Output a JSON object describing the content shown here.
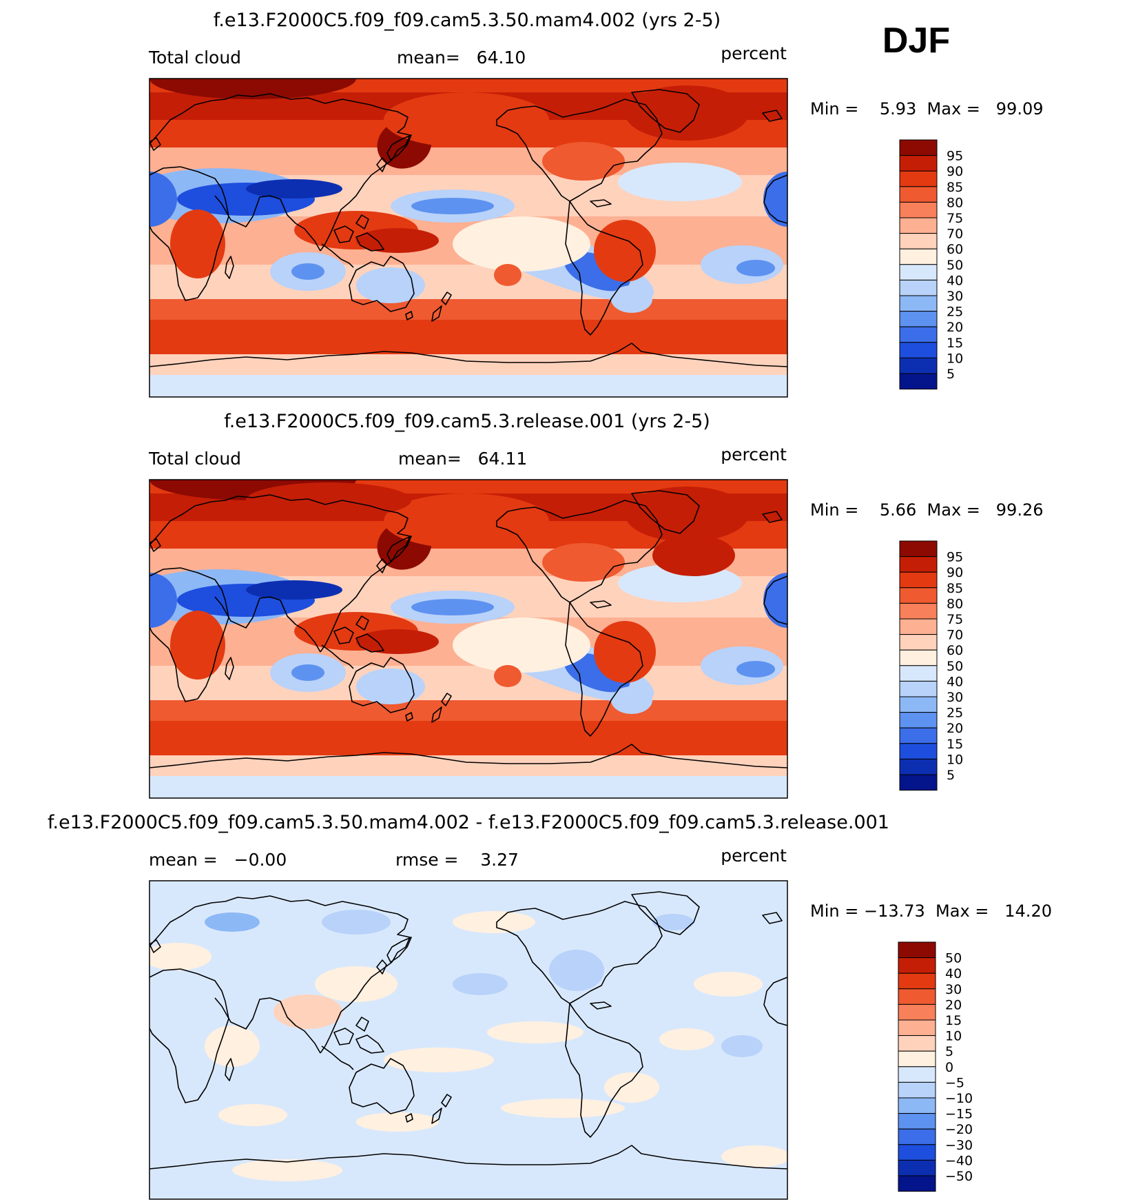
{
  "season": "DJF",
  "colors": {
    "warm": [
      "#fff0e0",
      "#ffd2bc",
      "#fdb092",
      "#f8805a",
      "#ef5a30",
      "#e33a12",
      "#c51e06",
      "#8c0a02"
    ],
    "cool": [
      "#d8e8fc",
      "#b8d2fa",
      "#8db8f6",
      "#5e92f0",
      "#3b6ee8",
      "#1d4ede",
      "#0c2fb2",
      "#04148a"
    ],
    "outline": "#000000"
  },
  "panels": [
    {
      "title": "f.e13.F2000C5.f09_f09.cam5.3.50.mam4.002 (yrs 2-5)",
      "left_label": "Total cloud",
      "center_label": "mean=   64.10",
      "right_label": "percent",
      "minmax_label": "Min =    5.93  Max =   99.09",
      "field_type": "absolute",
      "colorbar_labels": [
        "95",
        "90",
        "85",
        "80",
        "75",
        "70",
        "60",
        "50",
        "40",
        "30",
        "25",
        "20",
        "15",
        "10",
        "5"
      ]
    },
    {
      "title": "f.e13.F2000C5.f09_f09.cam5.3.release.001 (yrs 2-5)",
      "left_label": "Total cloud",
      "center_label": "mean=   64.11",
      "right_label": "percent",
      "minmax_label": "Min =    5.66  Max =   99.26",
      "field_type": "absolute",
      "colorbar_labels": [
        "95",
        "90",
        "85",
        "80",
        "75",
        "70",
        "60",
        "50",
        "40",
        "30",
        "25",
        "20",
        "15",
        "10",
        "5"
      ]
    },
    {
      "title": "f.e13.F2000C5.f09_f09.cam5.3.50.mam4.002 - f.e13.F2000C5.f09_f09.cam5.3.release.001",
      "left_label": "mean =   −0.00",
      "center_label": "rmse =    3.27",
      "right_label": "percent",
      "minmax_label": "Min = −13.73  Max =   14.20",
      "field_type": "difference",
      "colorbar_labels": [
        "50",
        "40",
        "30",
        "20",
        "15",
        "10",
        "5",
        "0",
        "−5",
        "−10",
        "−15",
        "−20",
        "−30",
        "−40",
        "−50"
      ]
    }
  ]
}
